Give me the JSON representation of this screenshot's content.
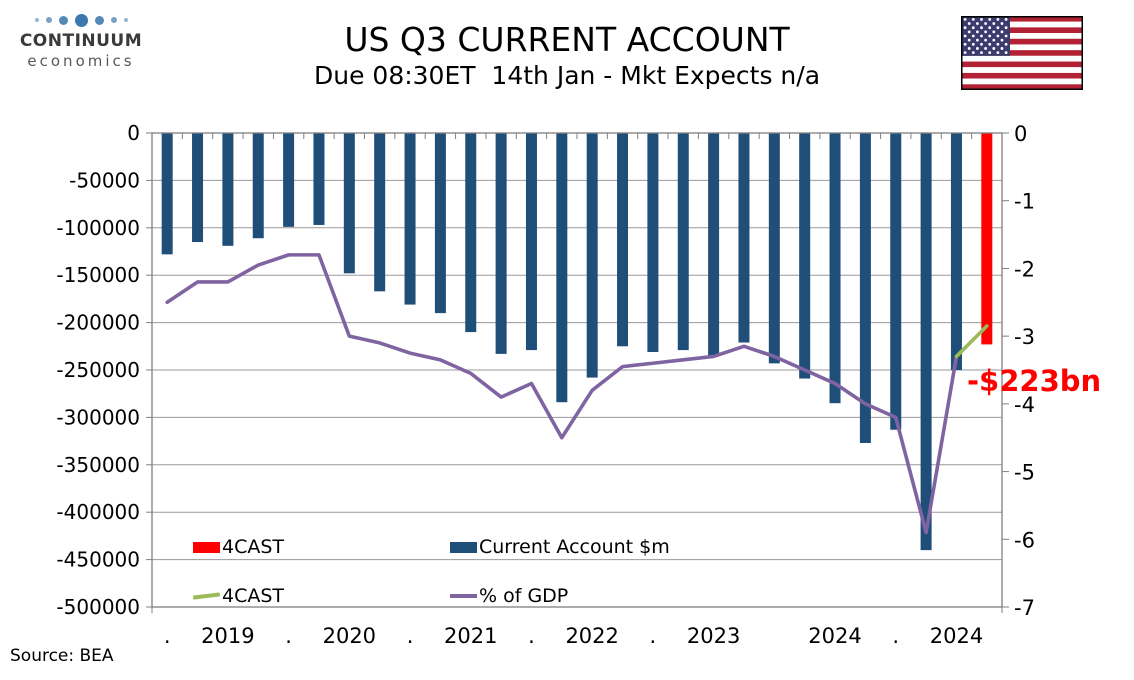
{
  "header": {
    "logo": {
      "line1": "CONTINUUM",
      "line2": "economics"
    },
    "title": "US Q3 CURRENT ACCOUNT",
    "subtitle": "Due 08:30ET  14th Jan - Mkt Expects n/a"
  },
  "chart_data": {
    "type": "bar",
    "subtype": "dual-axis bar + line combo, quarterly",
    "title": "US Q3 CURRENT ACCOUNT",
    "n_points": 28,
    "x_labels": [
      ".",
      "2019",
      ".",
      "2020",
      ".",
      "2021",
      ".",
      "2022",
      ".",
      "2023",
      "",
      "2024",
      ".",
      "2024"
    ],
    "left_axis": {
      "min": -500000,
      "max": 0,
      "ticks": [
        "0",
        "-50000",
        "-100000",
        "-150000",
        "-200000",
        "-250000",
        "-300000",
        "-350000",
        "-400000",
        "-450000",
        "-500000"
      ]
    },
    "right_axis": {
      "min": -7,
      "max": 0,
      "ticks": [
        "0",
        "-1",
        "-2",
        "-3",
        "-4",
        "-5",
        "-6",
        "-7"
      ]
    },
    "series": [
      {
        "name": "Current Account $m",
        "type": "bar",
        "axis": "left",
        "color": "#1F4E79",
        "values": [
          -128000,
          -115000,
          -119000,
          -111000,
          -99000,
          -97000,
          -148000,
          -167000,
          -181000,
          -190000,
          -210000,
          -233000,
          -229000,
          -284000,
          -258000,
          -225000,
          -231000,
          -229000,
          -235000,
          -221000,
          -243000,
          -259000,
          -285000,
          -327000,
          -313000,
          -440000,
          -250000,
          null
        ]
      },
      {
        "name": "4CAST",
        "type": "bar",
        "axis": "left",
        "color": "#FF0000",
        "values": [
          null,
          null,
          null,
          null,
          null,
          null,
          null,
          null,
          null,
          null,
          null,
          null,
          null,
          null,
          null,
          null,
          null,
          null,
          null,
          null,
          null,
          null,
          null,
          null,
          null,
          null,
          null,
          -223000
        ]
      },
      {
        "name": "% of GDP",
        "type": "line",
        "axis": "right",
        "color": "#8064A2",
        "values": [
          -2.5,
          -2.2,
          -2.2,
          -1.95,
          -1.8,
          -1.8,
          -3.0,
          -3.1,
          -3.25,
          -3.35,
          -3.55,
          -3.9,
          -3.7,
          -4.5,
          -3.8,
          -3.45,
          -3.4,
          -3.35,
          -3.3,
          -3.15,
          -3.3,
          -3.5,
          -3.7,
          -4.0,
          -4.2,
          -5.9,
          -3.3,
          null
        ]
      },
      {
        "name": "4CAST",
        "type": "line",
        "axis": "right",
        "color": "#9BBB59",
        "values": [
          null,
          null,
          null,
          null,
          null,
          null,
          null,
          null,
          null,
          null,
          null,
          null,
          null,
          null,
          null,
          null,
          null,
          null,
          null,
          null,
          null,
          null,
          null,
          null,
          null,
          null,
          -3.3,
          -2.85
        ]
      }
    ],
    "annotation": {
      "text": "-$223bn",
      "color": "#FF0000"
    },
    "grid": "horizontal",
    "legend_position": "inside-bottom-left"
  },
  "legend": {
    "items": [
      {
        "label": "4CAST",
        "swatch": "rect",
        "color": "#FF0000"
      },
      {
        "label": "Current Account $m",
        "swatch": "rect",
        "color": "#1F4E79"
      },
      {
        "label": "4CAST",
        "swatch": "line",
        "color": "#9BBB59"
      },
      {
        "label": "% of GDP",
        "swatch": "line",
        "color": "#8064A2"
      }
    ]
  },
  "footer": {
    "source": "Source: BEA"
  }
}
